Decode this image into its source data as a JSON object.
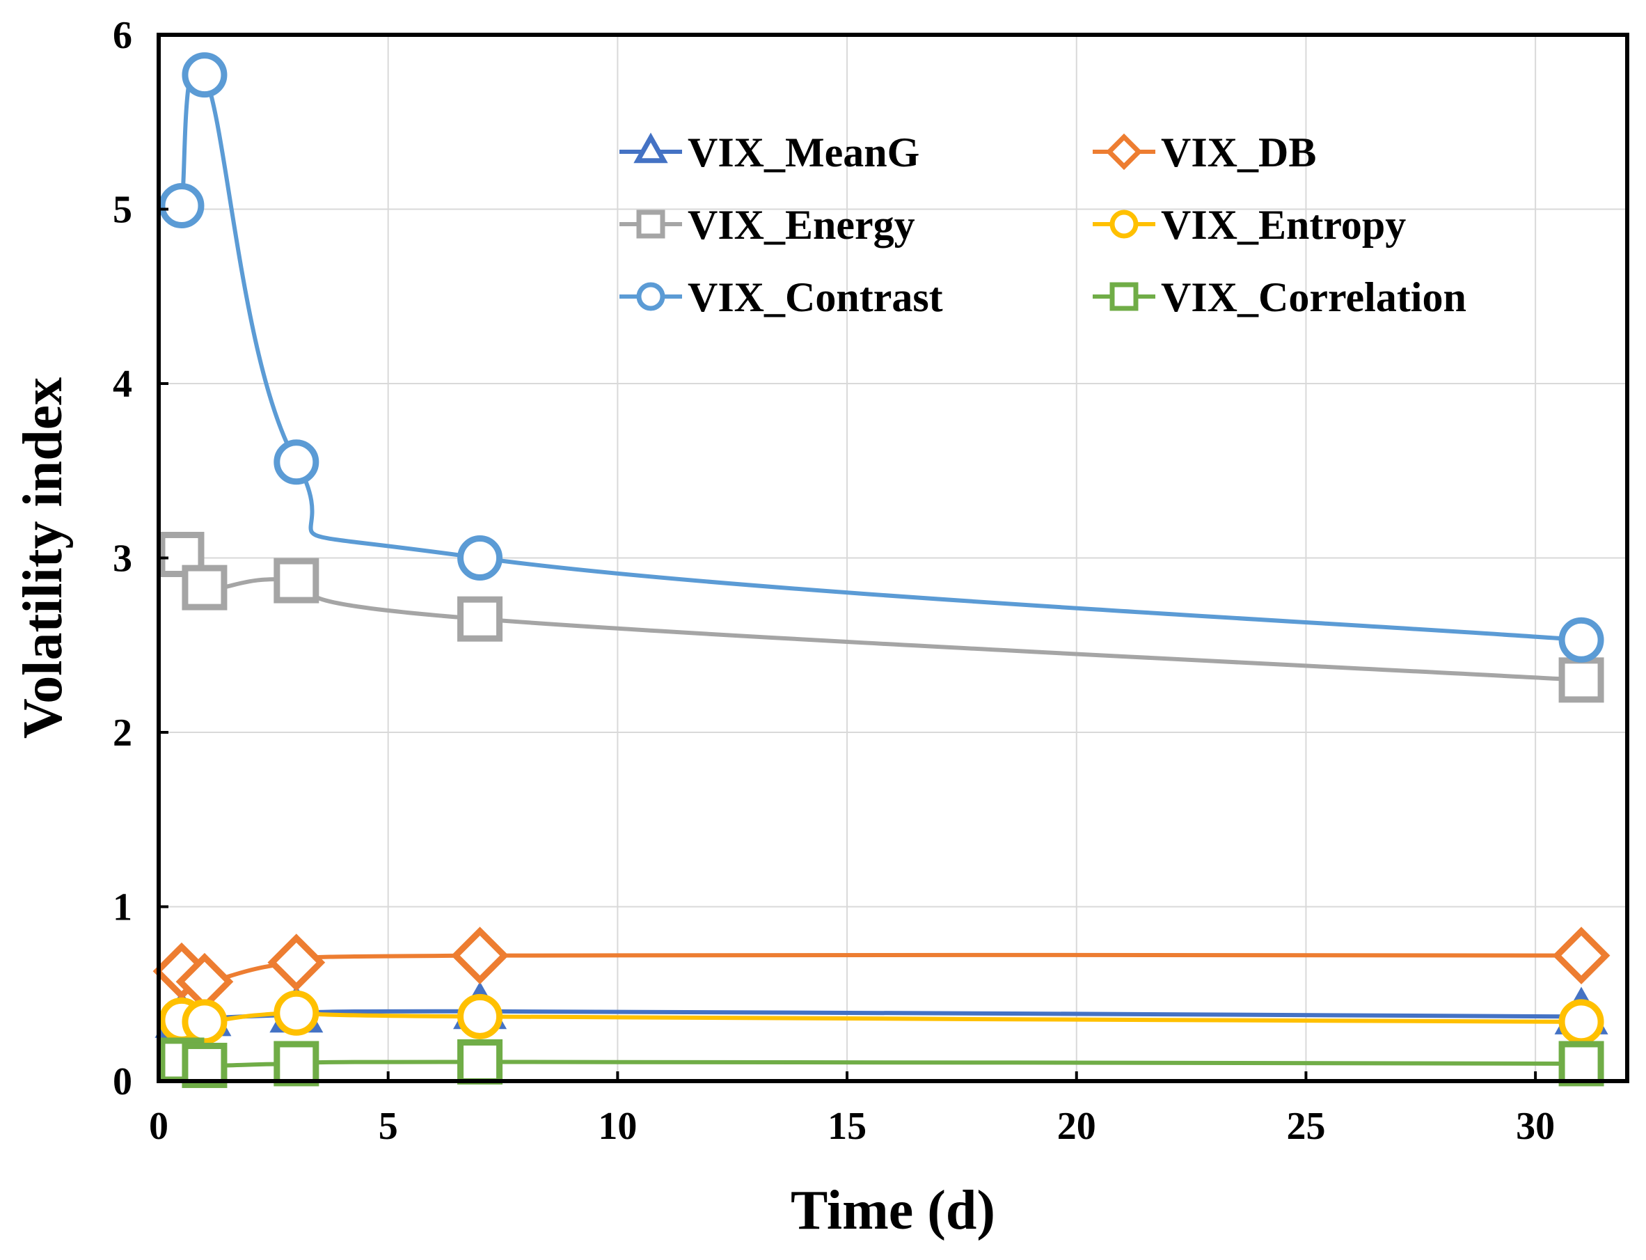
{
  "chart_data": {
    "type": "line",
    "title": "",
    "xlabel": "Time (d)",
    "ylabel": "Volatility index",
    "xlim": [
      0,
      32
    ],
    "ylim": [
      0,
      6
    ],
    "xticks": [
      0,
      5,
      10,
      15,
      20,
      25,
      30
    ],
    "yticks": [
      0,
      1,
      2,
      3,
      4,
      5,
      6
    ],
    "grid": true,
    "legend_position": "top-right",
    "x": [
      0.5,
      1,
      3,
      7,
      31
    ],
    "series": [
      {
        "name": "VIX_MeanG",
        "marker": "triangle",
        "color": "#4472C4",
        "values": [
          0.35,
          0.36,
          0.38,
          0.4,
          0.37
        ]
      },
      {
        "name": "VIX_DB",
        "marker": "diamond",
        "color": "#ED7D31",
        "values": [
          0.63,
          0.57,
          0.68,
          0.72,
          0.72
        ]
      },
      {
        "name": "VIX_Energy",
        "marker": "square",
        "color": "#A5A5A5",
        "values": [
          3.02,
          2.83,
          2.87,
          2.65,
          2.3
        ]
      },
      {
        "name": "VIX_Entropy",
        "marker": "circle",
        "color": "#FFC000",
        "values": [
          0.35,
          0.34,
          0.39,
          0.37,
          0.34
        ]
      },
      {
        "name": "VIX_Contrast",
        "marker": "circle",
        "color": "#5B9BD5",
        "values": [
          5.02,
          5.77,
          3.55,
          3.0,
          2.53
        ]
      },
      {
        "name": "VIX_Correlation",
        "marker": "square",
        "color": "#70AD47",
        "values": [
          0.12,
          0.09,
          0.1,
          0.11,
          0.1
        ]
      }
    ]
  }
}
